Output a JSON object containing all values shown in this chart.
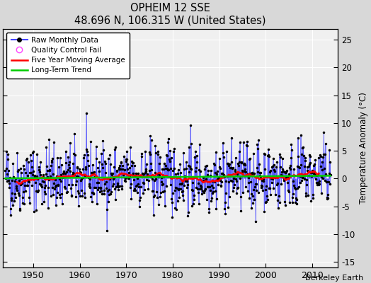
{
  "title": "OPHEIM 12 SSE",
  "subtitle": "48.696 N, 106.315 W (United States)",
  "credit": "Berkeley Earth",
  "ylabel": "Temperature Anomaly (°C)",
  "xlim": [
    1943.5,
    2015.5
  ],
  "ylim": [
    -16,
    27
  ],
  "yticks": [
    -15,
    -10,
    -5,
    0,
    5,
    10,
    15,
    20,
    25
  ],
  "xticks": [
    1950,
    1960,
    1970,
    1980,
    1990,
    2000,
    2010
  ],
  "plot_bg": "#f0f0f0",
  "fig_bg": "#d8d8d8",
  "line_color": "#4444ff",
  "ma_color": "#ff0000",
  "trend_color": "#00cc00",
  "qc_color": "#ff44ff",
  "grid_color": "#ffffff",
  "start_year": 1944,
  "end_year": 2014,
  "seed": 42
}
